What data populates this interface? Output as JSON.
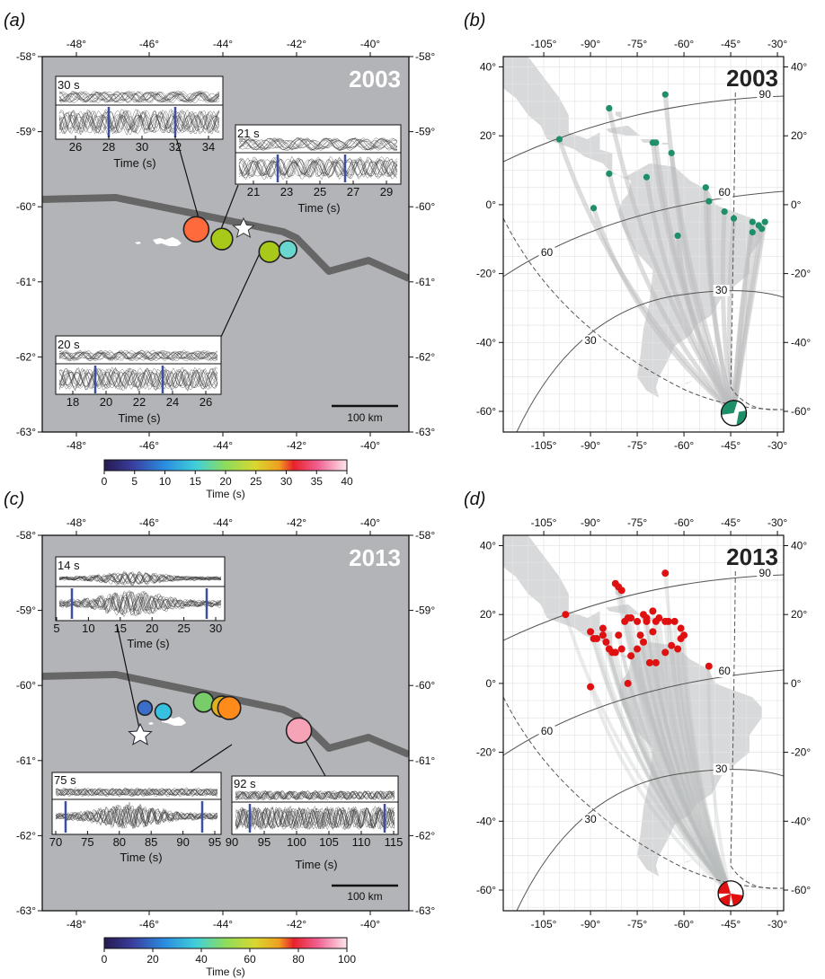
{
  "colors": {
    "ocean_gray": "#b3b4b8",
    "trench": "#666666",
    "land_gray": "#d8d9da",
    "green_station": "#1f8f6a",
    "red_station": "#e01010",
    "pick_blue": "#3c4fa0"
  },
  "chart_data": [
    {
      "panel": "(a)",
      "type": "scatter",
      "year_label": "2003",
      "xticks": [
        "-48°",
        "-46°",
        "-44°",
        "-42°",
        "-40°"
      ],
      "yticks": [
        "-58°",
        "-59°",
        "-60°",
        "-61°",
        "-62°",
        "-63°"
      ],
      "xlim": [
        -49,
        -39
      ],
      "ylim": [
        -63,
        -58
      ],
      "trench": [
        [
          -49,
          -60.07
        ],
        [
          -47,
          -60.05
        ],
        [
          -42.5,
          -60.5
        ],
        [
          -42,
          -60.72
        ],
        [
          -41,
          -61
        ],
        [
          -40,
          -60.85
        ],
        [
          -39,
          -61.22
        ]
      ],
      "subevents": [
        {
          "lon": -44.8,
          "lat": -60.3,
          "time": 30,
          "color": "#ff6a3c"
        },
        {
          "lon": -44.1,
          "lat": -60.43,
          "time": 21,
          "color": "#a8c81a"
        },
        {
          "lon": -42.8,
          "lat": -60.6,
          "time": 20,
          "color": "#a8c81a"
        },
        {
          "lon": -42.3,
          "lat": -60.57,
          "time": 12,
          "color": "#6ad6d0"
        }
      ],
      "epicenter": {
        "lon": -43.4,
        "lat": -60.42
      },
      "scale_bar": "100 km",
      "insets": [
        {
          "label": "30 s",
          "ticks": [
            "26",
            "28",
            "30",
            "32",
            "34"
          ],
          "xlabel": "Time (s)"
        },
        {
          "label": "21 s",
          "ticks": [
            "21",
            "23",
            "25",
            "27",
            "29"
          ],
          "xlabel": "Time (s)"
        },
        {
          "label": "20 s",
          "ticks": [
            "18",
            "20",
            "22",
            "24",
            "26"
          ],
          "xlabel": "Time (s)"
        }
      ],
      "colorbar": {
        "ticks": [
          "0",
          "5",
          "10",
          "15",
          "20",
          "25",
          "30",
          "35",
          "40"
        ],
        "label": "Time (s)",
        "range": [
          0,
          40
        ]
      }
    },
    {
      "panel": "(b)",
      "type": "scatter",
      "year_label": "2003",
      "xticks": [
        "-105°",
        "-90°",
        "-75°",
        "-60°",
        "-45°",
        "-30°"
      ],
      "yticks": [
        "40°",
        "20°",
        "0°",
        "-20°",
        "-40°",
        "-60°"
      ],
      "distance_labels": [
        "90",
        "60",
        "60",
        "30",
        "30"
      ],
      "stations": [
        [
          -100,
          19
        ],
        [
          -84,
          28
        ],
        [
          -66,
          32
        ],
        [
          -84,
          9
        ],
        [
          -89,
          -1
        ],
        [
          -70,
          18
        ],
        [
          -69,
          18
        ],
        [
          -64,
          15
        ],
        [
          -72,
          8
        ],
        [
          -53,
          5
        ],
        [
          -52,
          1
        ],
        [
          -47,
          -2
        ],
        [
          -38,
          -5
        ],
        [
          -38,
          -8
        ],
        [
          -44,
          -4
        ],
        [
          -36,
          -6
        ],
        [
          -35,
          -7
        ],
        [
          -34,
          -5
        ],
        [
          -62,
          -9
        ]
      ],
      "source": {
        "lon": -44,
        "lat": -60.5
      }
    },
    {
      "panel": "(c)",
      "type": "scatter",
      "year_label": "2013",
      "xticks": [
        "-48°",
        "-46°",
        "-44°",
        "-42°",
        "-40°"
      ],
      "yticks": [
        "-58°",
        "-59°",
        "-60°",
        "-61°",
        "-62°",
        "-63°"
      ],
      "xlim": [
        -49,
        -39
      ],
      "ylim": [
        -63,
        -58
      ],
      "subevents": [
        {
          "lon": -46.2,
          "lat": -60.3,
          "time": 14,
          "color": "#3a6ec8"
        },
        {
          "lon": -45.7,
          "lat": -60.35,
          "time": 28,
          "color": "#38c0e0"
        },
        {
          "lon": -44.6,
          "lat": -60.22,
          "time": 55,
          "color": "#78cc6a"
        },
        {
          "lon": -44.1,
          "lat": -60.28,
          "time": 60,
          "color": "#e0b020"
        },
        {
          "lon": -43.9,
          "lat": -60.3,
          "time": 75,
          "color": "#ff8c1a"
        },
        {
          "lon": -42.0,
          "lat": -60.6,
          "time": 92,
          "color": "#f6a3b8"
        }
      ],
      "epicenter": {
        "lon": -46.3,
        "lat": -60.28
      },
      "scale_bar": "100 km",
      "insets": [
        {
          "label": "14 s",
          "ticks": [
            "5",
            "10",
            "15",
            "20",
            "25",
            "30"
          ],
          "xlabel": "Time (s)"
        },
        {
          "label": "75 s",
          "ticks": [
            "70",
            "75",
            "80",
            "85",
            "90",
            "95"
          ],
          "xlabel": "Time (s)"
        },
        {
          "label": "92 s",
          "ticks": [
            "90",
            "95",
            "100",
            "105",
            "110",
            "115"
          ],
          "xlabel": "Time (s)"
        }
      ],
      "colorbar": {
        "ticks": [
          "0",
          "20",
          "40",
          "60",
          "80",
          "100"
        ],
        "label": "Time (s)",
        "range": [
          0,
          100
        ]
      }
    },
    {
      "panel": "(d)",
      "type": "scatter",
      "year_label": "2013",
      "xticks": [
        "-105°",
        "-90°",
        "-75°",
        "-60°",
        "-45°",
        "-30°"
      ],
      "yticks": [
        "40°",
        "20°",
        "0°",
        "-20°",
        "-40°",
        "-60°"
      ],
      "distance_labels": [
        "90",
        "60",
        "60",
        "30",
        "30"
      ],
      "stations": [
        [
          -98,
          20
        ],
        [
          -82,
          29
        ],
        [
          -81,
          28
        ],
        [
          -80,
          27
        ],
        [
          -66,
          32
        ],
        [
          -90,
          15
        ],
        [
          -89,
          13
        ],
        [
          -88,
          13
        ],
        [
          -86,
          14
        ],
        [
          -85,
          12
        ],
        [
          -84,
          10
        ],
        [
          -83,
          9
        ],
        [
          -82,
          9
        ],
        [
          -80,
          10
        ],
        [
          -79,
          18
        ],
        [
          -78,
          19
        ],
        [
          -77,
          19
        ],
        [
          -75,
          18
        ],
        [
          -73,
          20
        ],
        [
          -72,
          19
        ],
        [
          -72,
          18
        ],
        [
          -70,
          21
        ],
        [
          -69,
          18
        ],
        [
          -68,
          19
        ],
        [
          -66,
          18
        ],
        [
          -65,
          18
        ],
        [
          -63,
          18
        ],
        [
          -61,
          16
        ],
        [
          -60,
          14
        ],
        [
          -61,
          13
        ],
        [
          -70,
          15
        ],
        [
          -73,
          12
        ],
        [
          -75,
          10
        ],
        [
          -77,
          8
        ],
        [
          -71,
          6
        ],
        [
          -69,
          6
        ],
        [
          -64,
          11
        ],
        [
          -62,
          10
        ],
        [
          -66,
          9
        ],
        [
          -90,
          -1
        ],
        [
          -78,
          0
        ],
        [
          -52,
          5
        ],
        [
          -74,
          14
        ],
        [
          -81,
          14
        ],
        [
          -86,
          16
        ]
      ],
      "source": {
        "lon": -45,
        "lat": -61
      }
    }
  ],
  "labels": {
    "a": "(a)",
    "b": "(b)",
    "c": "(c)",
    "d": "(d)",
    "year_a": "2003",
    "year_b": "2003",
    "year_c": "2013",
    "year_d": "2013",
    "scale_a": "100 km",
    "scale_c": "100 km",
    "inset_a1": "30 s",
    "inset_a2": "21 s",
    "inset_a3": "20 s",
    "inset_c1": "14 s",
    "inset_c2": "75 s",
    "inset_c3": "92 s",
    "time_label": "Time (s)"
  }
}
